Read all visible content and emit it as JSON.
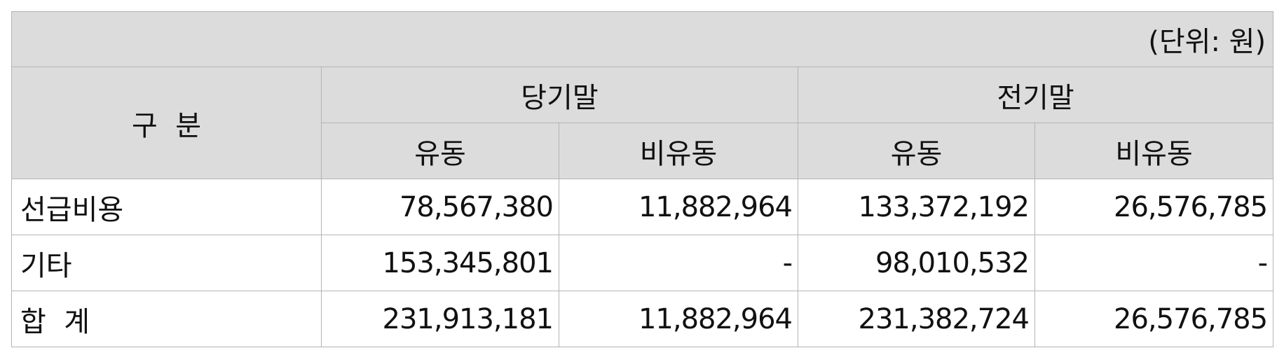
{
  "unit": "(단위: 원)",
  "header": {
    "category": "구  분",
    "current_period": "당기말",
    "prior_period": "전기말",
    "current": "유동",
    "non_current": "비유동"
  },
  "rows": [
    {
      "label": "선급비용",
      "cur_current": "78,567,380",
      "cur_noncurrent": "11,882,964",
      "prior_current": "133,372,192",
      "prior_noncurrent": "26,576,785"
    },
    {
      "label": "기타",
      "cur_current": "153,345,801",
      "cur_noncurrent": "-",
      "prior_current": "98,010,532",
      "prior_noncurrent": "-"
    },
    {
      "label": "합  계",
      "cur_current": "231,913,181",
      "cur_noncurrent": "11,882,964",
      "prior_current": "231,382,724",
      "prior_noncurrent": "26,576,785"
    }
  ]
}
